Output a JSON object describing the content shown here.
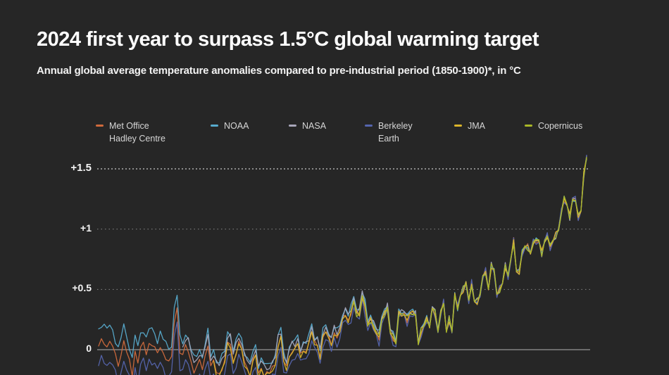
{
  "header": {
    "title": "2024 first year to surpass 1.5°C global warming target",
    "subtitle": "Annual global average temperature anomalies compared to pre-industrial period (1850-1900)*, in °C"
  },
  "colors": {
    "background": "#262626",
    "title_text": "#ffffff",
    "legend_text": "#d6d6d6",
    "axis_label_text": "#f5f5f5"
  },
  "legend": {
    "items": [
      {
        "id": "met-office",
        "label": "Met Office\nHadley Centre",
        "color": "#d06a3c"
      },
      {
        "id": "noaa",
        "label": "NOAA",
        "color": "#57abce"
      },
      {
        "id": "nasa",
        "label": "NASA",
        "color": "#a8a6ba"
      },
      {
        "id": "berkeley-earth",
        "label": "Berkeley\nEarth",
        "color": "#5565ae"
      },
      {
        "id": "jma",
        "label": "JMA",
        "color": "#dcb52b"
      },
      {
        "id": "copernicus",
        "label": "Copernicus",
        "color": "#a9b827"
      }
    ]
  },
  "chart_data": {
    "type": "line",
    "title": "2024 first year to surpass 1.5°C global warming target",
    "subtitle": "Annual global average temperature anomalies compared to pre-industrial period (1850-1900)*, in °C",
    "unit": "°C",
    "baseline_period": "1850-1900",
    "x_start": 1850,
    "x_end": 2024,
    "ylim": [
      -0.25,
      1.7
    ],
    "grid": "horizontal-only",
    "legend_position": "top",
    "yticks": [
      {
        "label": "+1.5",
        "value": 1.5,
        "style": "dotted-strong",
        "emphasis": true
      },
      {
        "label": "+1",
        "value": 1.0,
        "style": "dotted",
        "emphasis": false
      },
      {
        "label": "+0.5",
        "value": 0.5,
        "style": "dotted",
        "emphasis": false
      },
      {
        "label": "0",
        "value": 0.0,
        "style": "solid",
        "emphasis": false
      }
    ],
    "base_anomaly_by_year": [
      0.03,
      0.08,
      0.06,
      0.04,
      0.05,
      0.03,
      -0.05,
      -0.12,
      -0.03,
      0.06,
      -0.02,
      -0.1,
      -0.2,
      0.0,
      -0.12,
      0.02,
      0.04,
      -0.02,
      0.06,
      0.03,
      0.02,
      -0.05,
      0.04,
      -0.02,
      -0.08,
      -0.1,
      -0.08,
      0.25,
      0.35,
      -0.02,
      -0.05,
      0.02,
      0.0,
      -0.1,
      -0.18,
      -0.15,
      -0.1,
      -0.15,
      -0.05,
      0.05,
      -0.15,
      -0.1,
      -0.18,
      -0.2,
      -0.15,
      -0.1,
      0.05,
      0.05,
      -0.1,
      -0.02,
      0.05,
      0.0,
      -0.1,
      -0.15,
      -0.2,
      -0.1,
      -0.05,
      -0.2,
      -0.15,
      -0.2,
      -0.2,
      -0.2,
      -0.15,
      -0.12,
      0.05,
      0.1,
      -0.1,
      -0.15,
      -0.05,
      0.0,
      0.0,
      0.05,
      -0.05,
      0.0,
      0.0,
      0.05,
      0.15,
      0.05,
      0.05,
      -0.05,
      0.1,
      0.15,
      0.1,
      0.05,
      0.15,
      0.1,
      0.15,
      0.25,
      0.3,
      0.25,
      0.3,
      0.4,
      0.3,
      0.3,
      0.45,
      0.35,
      0.2,
      0.25,
      0.2,
      0.15,
      0.1,
      0.25,
      0.3,
      0.35,
      0.15,
      0.1,
      0.05,
      0.3,
      0.3,
      0.3,
      0.25,
      0.3,
      0.3,
      0.3,
      0.05,
      0.15,
      0.2,
      0.25,
      0.2,
      0.35,
      0.3,
      0.15,
      0.3,
      0.4,
      0.15,
      0.25,
      0.15,
      0.45,
      0.35,
      0.45,
      0.5,
      0.55,
      0.4,
      0.55,
      0.4,
      0.4,
      0.45,
      0.6,
      0.65,
      0.5,
      0.7,
      0.65,
      0.45,
      0.5,
      0.55,
      0.7,
      0.6,
      0.75,
      0.9,
      0.65,
      0.65,
      0.8,
      0.85,
      0.85,
      0.8,
      0.9,
      0.9,
      0.9,
      0.8,
      0.9,
      0.95,
      0.85,
      0.9,
      0.95,
      1.0,
      1.15,
      1.25,
      1.2,
      1.1,
      1.25,
      1.25,
      1.1,
      1.15,
      1.45,
      1.6
    ],
    "series": [
      {
        "id": "met-office",
        "name": "Met Office Hadley Centre",
        "color": "#d06a3c",
        "start_year": 1850,
        "early_offset": 0.0,
        "jitter_amp": 0.03,
        "seed": 1
      },
      {
        "id": "noaa",
        "name": "NOAA",
        "color": "#57abce",
        "start_year": 1850,
        "early_offset": 0.14,
        "jitter_amp": 0.035,
        "seed": 2
      },
      {
        "id": "nasa",
        "name": "NASA",
        "color": "#a8a6ba",
        "start_year": 1880,
        "early_offset": 0.1,
        "jitter_amp": 0.03,
        "seed": 3
      },
      {
        "id": "berkeley-earth",
        "name": "Berkeley Earth",
        "color": "#5565ae",
        "start_year": 1850,
        "early_offset": -0.16,
        "jitter_amp": 0.035,
        "seed": 4
      },
      {
        "id": "jma",
        "name": "JMA",
        "color": "#dcb52b",
        "start_year": 1891,
        "early_offset": -0.02,
        "jitter_amp": 0.03,
        "seed": 5
      },
      {
        "id": "copernicus",
        "name": "Copernicus",
        "color": "#a9b827",
        "start_year": 1940,
        "early_offset": 0.0,
        "jitter_amp": 0.03,
        "seed": 6
      }
    ],
    "highlight": {
      "year": 2024,
      "value": 1.6,
      "note_value_exceeds": "+1.5"
    }
  }
}
